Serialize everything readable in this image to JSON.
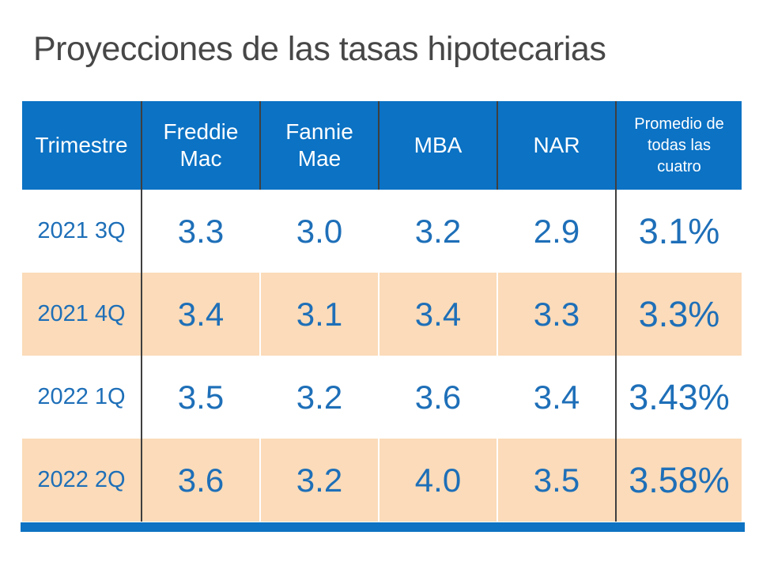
{
  "slide": {
    "title": "Proyecciones de las tasas hipotecarias"
  },
  "table": {
    "columns": [
      {
        "label": "Trimestre"
      },
      {
        "label": "Freddie Mac"
      },
      {
        "label": "Fannie Mae"
      },
      {
        "label": "MBA"
      },
      {
        "label": "NAR"
      },
      {
        "label": "Promedio de todas las cuatro"
      }
    ],
    "rows": [
      {
        "cells": [
          "2021 3Q",
          "3.3",
          "3.0",
          "3.2",
          "2.9",
          "3.1%"
        ]
      },
      {
        "cells": [
          "2021 4Q",
          "3.4",
          "3.1",
          "3.4",
          "3.3",
          "3.3%"
        ]
      },
      {
        "cells": [
          "2022 1Q",
          "3.5",
          "3.2",
          "3.6",
          "3.4",
          "3.43%"
        ]
      },
      {
        "cells": [
          "2022 2Q",
          "3.6",
          "3.2",
          "4.0",
          "3.5",
          "3.58%"
        ]
      }
    ]
  },
  "chart_data": {
    "type": "table",
    "title": "Proyecciones de las tasas hipotecarias",
    "columns": [
      "Trimestre",
      "Freddie Mac",
      "Fannie Mae",
      "MBA",
      "NAR",
      "Promedio de todas las cuatro"
    ],
    "rows": [
      [
        "2021 3Q",
        3.3,
        3.0,
        3.2,
        2.9,
        "3.1%"
      ],
      [
        "2021 4Q",
        3.4,
        3.1,
        3.4,
        3.3,
        "3.3%"
      ],
      [
        "2022 1Q",
        3.5,
        3.2,
        3.6,
        3.4,
        "3.43%"
      ],
      [
        "2022 2Q",
        3.6,
        3.2,
        4.0,
        3.5,
        "3.58%"
      ]
    ]
  },
  "colors": {
    "header_blue": "#0b72c4",
    "accent_bar_blue": "#0d73c2",
    "row_peach": "#fbdbb9",
    "row_white": "#ffffff",
    "text_blue": "#1e6fb8",
    "title_gray": "#474747",
    "divider_dark": "#3f3f3f"
  }
}
